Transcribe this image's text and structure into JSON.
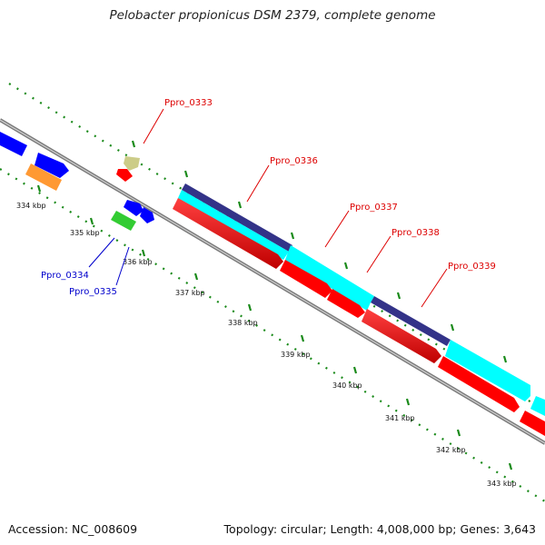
{
  "title": "Pelobacter propionicus DSM 2379, complete genome",
  "footer": {
    "accession_label": "Accession:",
    "accession": "NC_008609",
    "topology_label": "Topology:",
    "topology": "circular",
    "length_label": "Length:",
    "length": "4,008,000 bp",
    "genes_label": "Genes:",
    "genes": "3,643"
  },
  "colors": {
    "backbone": "#8c8c8c",
    "ticks": "#1a8a1a",
    "forward_label": "#dd0000",
    "reverse_label": "#0000cc",
    "cds_red": "#ff0000",
    "cds_blue": "#0000ff",
    "cds_orange": "#ff9933",
    "cds_green": "#33cc33",
    "cds_tan": "#cccc88",
    "cds_cyan": "#00ffff",
    "cds_navy": "#333388"
  },
  "kbp_ticks": [
    "334 kbp",
    "335 kbp",
    "336 kbp",
    "337 kbp",
    "338 kbp",
    "339 kbp",
    "340 kbp",
    "341 kbp",
    "342 kbp",
    "343 kbp"
  ],
  "genes": [
    {
      "id": "g0333",
      "label": "Ppro_0333",
      "strand": "forward"
    },
    {
      "id": "g0334",
      "label": "Ppro_0334",
      "strand": "reverse"
    },
    {
      "id": "g0335",
      "label": "Ppro_0335",
      "strand": "reverse"
    },
    {
      "id": "g0336",
      "label": "Ppro_0336",
      "strand": "forward"
    },
    {
      "id": "g0337",
      "label": "Ppro_0337",
      "strand": "forward"
    },
    {
      "id": "g0338",
      "label": "Ppro_0338",
      "strand": "forward"
    },
    {
      "id": "g0339",
      "label": "Ppro_0339",
      "strand": "forward"
    }
  ]
}
